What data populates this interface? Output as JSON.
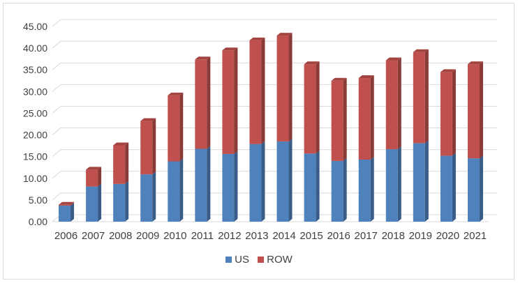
{
  "chart_data": {
    "type": "bar",
    "stacked": true,
    "three_d": true,
    "categories": [
      "2006",
      "2007",
      "2008",
      "2009",
      "2010",
      "2011",
      "2012",
      "2013",
      "2014",
      "2015",
      "2016",
      "2017",
      "2018",
      "2019",
      "2020",
      "2021"
    ],
    "series": [
      {
        "name": "US",
        "color": "#4f81bd",
        "values": [
          3.7,
          8.1,
          8.7,
          10.9,
          13.9,
          16.8,
          15.6,
          17.9,
          18.5,
          15.7,
          14.0,
          14.3,
          16.7,
          18.1,
          15.2,
          14.6
        ]
      },
      {
        "name": "ROW",
        "color": "#c0504d",
        "values": [
          0.2,
          3.9,
          8.9,
          12.3,
          15.2,
          20.6,
          23.9,
          23.9,
          24.4,
          20.6,
          18.5,
          18.8,
          20.5,
          21.0,
          19.3,
          21.7
        ]
      }
    ],
    "yticks": [
      "0.00",
      "5.00",
      "10.00",
      "15.00",
      "20.00",
      "25.00",
      "30.00",
      "35.00",
      "40.00",
      "45.00"
    ],
    "ylim": [
      0,
      45
    ],
    "grid": true,
    "legend_position": "bottom"
  }
}
